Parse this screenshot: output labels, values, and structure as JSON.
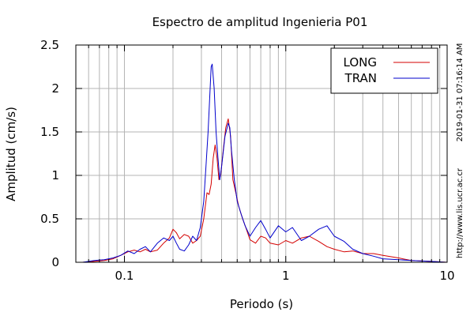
{
  "chart_data": {
    "type": "line",
    "title": "Espectro de amplitud Ingenieria P01",
    "xlabel": "Periodo (s)",
    "ylabel": "Amplitud (cm/s)",
    "x_scale": "log",
    "xlim": [
      0.05,
      10
    ],
    "ylim": [
      0,
      2.5
    ],
    "x_ticks": [
      0.1,
      1,
      10
    ],
    "x_tick_labels": [
      "0.1",
      "1",
      "10"
    ],
    "y_ticks": [
      0,
      0.5,
      1,
      1.5,
      2,
      2.5
    ],
    "y_tick_labels": [
      "0",
      "0.5",
      "1",
      "1.5",
      "2",
      "2.5"
    ],
    "grid": true,
    "legend_position": "top-right",
    "side_text": [
      "2019-01-31 07:16:14 AM",
      "http://www.lis.ucr.ac.cr"
    ],
    "series": [
      {
        "name": "LONG",
        "color": "#d40000",
        "x": [
          0.055,
          0.065,
          0.075,
          0.085,
          0.095,
          0.105,
          0.115,
          0.125,
          0.135,
          0.145,
          0.16,
          0.175,
          0.19,
          0.2,
          0.21,
          0.22,
          0.235,
          0.25,
          0.265,
          0.28,
          0.295,
          0.31,
          0.325,
          0.335,
          0.345,
          0.355,
          0.365,
          0.375,
          0.385,
          0.395,
          0.41,
          0.425,
          0.44,
          0.455,
          0.47,
          0.49,
          0.51,
          0.54,
          0.57,
          0.6,
          0.65,
          0.7,
          0.75,
          0.8,
          0.9,
          1.0,
          1.1,
          1.25,
          1.4,
          1.6,
          1.8,
          2.0,
          2.3,
          2.6,
          3.0,
          3.5,
          4.0,
          5.0,
          6.0,
          8.0,
          10.0
        ],
        "y": [
          0.0,
          0.01,
          0.02,
          0.04,
          0.08,
          0.12,
          0.14,
          0.12,
          0.15,
          0.12,
          0.14,
          0.22,
          0.28,
          0.38,
          0.34,
          0.27,
          0.32,
          0.3,
          0.22,
          0.25,
          0.3,
          0.5,
          0.8,
          0.78,
          0.9,
          1.2,
          1.35,
          1.2,
          0.95,
          1.0,
          1.3,
          1.55,
          1.65,
          1.45,
          0.95,
          0.8,
          0.65,
          0.5,
          0.38,
          0.26,
          0.22,
          0.3,
          0.28,
          0.22,
          0.2,
          0.25,
          0.22,
          0.28,
          0.3,
          0.24,
          0.18,
          0.15,
          0.12,
          0.13,
          0.1,
          0.1,
          0.08,
          0.05,
          0.02,
          0.01,
          0.0
        ]
      },
      {
        "name": "TRAN",
        "color": "#0000cc",
        "x": [
          0.055,
          0.065,
          0.075,
          0.085,
          0.095,
          0.105,
          0.115,
          0.125,
          0.135,
          0.145,
          0.16,
          0.175,
          0.19,
          0.2,
          0.21,
          0.22,
          0.235,
          0.25,
          0.265,
          0.28,
          0.295,
          0.31,
          0.32,
          0.33,
          0.34,
          0.345,
          0.35,
          0.36,
          0.37,
          0.38,
          0.39,
          0.4,
          0.42,
          0.44,
          0.45,
          0.46,
          0.48,
          0.5,
          0.53,
          0.56,
          0.6,
          0.65,
          0.7,
          0.75,
          0.8,
          0.9,
          1.0,
          1.1,
          1.25,
          1.4,
          1.6,
          1.8,
          2.0,
          2.3,
          2.6,
          3.0,
          3.5,
          4.0,
          5.0,
          6.0,
          8.0,
          10.0
        ],
        "y": [
          0.0,
          0.02,
          0.03,
          0.05,
          0.08,
          0.13,
          0.1,
          0.15,
          0.18,
          0.12,
          0.22,
          0.28,
          0.25,
          0.3,
          0.22,
          0.15,
          0.13,
          0.2,
          0.3,
          0.25,
          0.4,
          0.7,
          1.1,
          1.5,
          2.0,
          2.25,
          2.28,
          2.0,
          1.5,
          1.2,
          0.95,
          1.1,
          1.45,
          1.6,
          1.55,
          1.3,
          0.95,
          0.7,
          0.55,
          0.42,
          0.3,
          0.4,
          0.48,
          0.38,
          0.28,
          0.42,
          0.35,
          0.4,
          0.25,
          0.3,
          0.38,
          0.42,
          0.3,
          0.24,
          0.15,
          0.1,
          0.07,
          0.04,
          0.03,
          0.02,
          0.01,
          0.0
        ]
      }
    ]
  }
}
